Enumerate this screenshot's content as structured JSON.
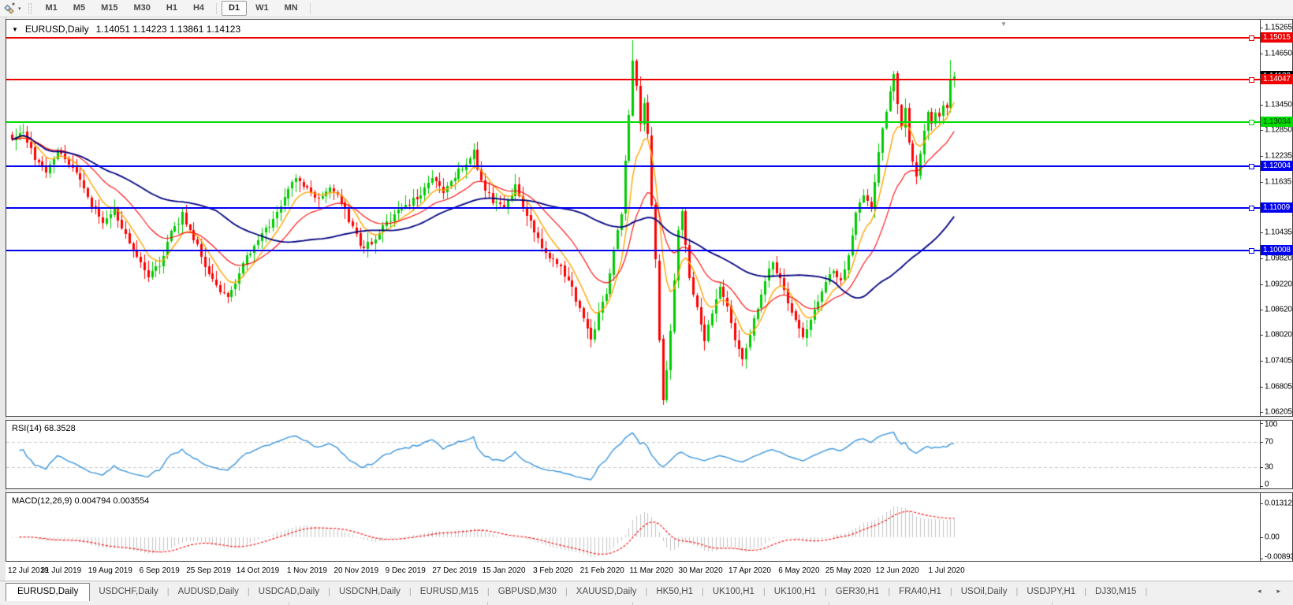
{
  "toolbar": {
    "dropdown_glyph": "▾",
    "timeframes": [
      {
        "label": "M1",
        "active": false
      },
      {
        "label": "M5",
        "active": false
      },
      {
        "label": "M15",
        "active": false
      },
      {
        "label": "M30",
        "active": false
      },
      {
        "label": "H1",
        "active": false
      },
      {
        "label": "H4",
        "active": false
      },
      {
        "label": "D1",
        "active": true
      },
      {
        "label": "W1",
        "active": false
      },
      {
        "label": "MN",
        "active": false
      }
    ]
  },
  "icons": {
    "charts_icon": "charts-icon",
    "title_dropdown": "▼",
    "shift_marker": "▼",
    "tab_scroll_left": "◂",
    "tab_scroll_right": "▸"
  },
  "chart": {
    "symbol": "EURUSD,Daily",
    "ohlc": "1.14051 1.14223 1.13861 1.14123",
    "axis_ticks": [
      {
        "price": 1.15265,
        "label": "1.15265"
      },
      {
        "price": 1.1465,
        "label": "1.14650"
      },
      {
        "price": 1.1345,
        "label": "1.13450"
      },
      {
        "price": 1.1285,
        "label": "1.12850"
      },
      {
        "price": 1.12235,
        "label": "1.12235"
      },
      {
        "price": 1.11635,
        "label": "1.11635"
      },
      {
        "price": 1.10435,
        "label": "1.10435"
      },
      {
        "price": 1.0982,
        "label": "1.09820"
      },
      {
        "price": 1.0922,
        "label": "1.09220"
      },
      {
        "price": 1.0862,
        "label": "1.08620"
      },
      {
        "price": 1.0802,
        "label": "1.08020"
      },
      {
        "price": 1.07405,
        "label": "1.07405"
      },
      {
        "price": 1.06805,
        "label": "1.06805"
      },
      {
        "price": 1.06205,
        "label": "1.06205"
      }
    ],
    "hlines": [
      {
        "price": 1.15015,
        "label": "1.15015",
        "color": "#EE0000",
        "text": "#FFFFFF"
      },
      {
        "price": 1.14047,
        "label": "1.14047",
        "color": "#EE0000",
        "text": "#FFFFFF"
      },
      {
        "price": 1.13034,
        "label": "1.13034",
        "color": "#00DC00",
        "text": "#003300"
      },
      {
        "price": 1.12004,
        "label": "1.12004",
        "color": "#0000EE",
        "text": "#FFFFFF"
      },
      {
        "price": 1.11009,
        "label": "1.11009",
        "color": "#0000EE",
        "text": "#FFFFFF"
      },
      {
        "price": 1.10008,
        "label": "1.10008",
        "color": "#0000EE",
        "text": "#FFFFFF"
      }
    ],
    "current_price": {
      "price": 1.14123,
      "label": "1.14123",
      "color": "#000000",
      "text": "#FFFFFF"
    },
    "colors": {
      "bull": "#00CC00",
      "bear": "#FF0000",
      "ma_fast": "#FFA500",
      "ma_mid": "#FF0000",
      "ma_slow": "#000080"
    }
  },
  "rsi": {
    "label": "RSI(14) 68.3528",
    "color": "#3C96DC",
    "level_color": "#C8C8C8",
    "ticks": [
      {
        "v": 100,
        "label": "100"
      },
      {
        "v": 70,
        "label": "70"
      },
      {
        "v": 30,
        "label": "30"
      },
      {
        "v": 0,
        "label": "0"
      }
    ],
    "levels": [
      70,
      30
    ]
  },
  "macd": {
    "label": "MACD(12,26,9) 0.004794 0.003554",
    "hist_color": "#C4C4C4",
    "signal_color": "#FF0000",
    "ticks": [
      {
        "v": 0.013121,
        "label": "0.013121"
      },
      {
        "v": 0,
        "label": "0.00"
      },
      {
        "v": -0.008933,
        "label": "-0.008933"
      }
    ]
  },
  "dates": [
    "12 Jul 2019",
    "31 Jul 2019",
    "19 Aug 2019",
    "6 Sep 2019",
    "25 Sep 2019",
    "14 Oct 2019",
    "1 Nov 2019",
    "20 Nov 2019",
    "9 Dec 2019",
    "27 Dec 2019",
    "15 Jan 2020",
    "3 Feb 2020",
    "21 Feb 2020",
    "11 Mar 2020",
    "30 Mar 2020",
    "17 Apr 2020",
    "6 May 2020",
    "25 May 2020",
    "12 Jun 2020",
    "1 Jul 2020"
  ],
  "tabs": {
    "items": [
      {
        "label": "EURUSD,Daily",
        "active": true
      },
      {
        "label": "USDCHF,Daily",
        "active": false
      },
      {
        "label": "AUDUSD,Daily",
        "active": false
      },
      {
        "label": "USDCAD,Daily",
        "active": false
      },
      {
        "label": "USDCNH,Daily",
        "active": false
      },
      {
        "label": "EURUSD,M15",
        "active": false
      },
      {
        "label": "GBPUSD,M30",
        "active": false
      },
      {
        "label": "XAUUSD,Daily",
        "active": false
      },
      {
        "label": "HK50,H1",
        "active": false
      },
      {
        "label": "UK100,H1",
        "active": false
      },
      {
        "label": "UK100,H1",
        "active": false
      },
      {
        "label": "GER30,H1",
        "active": false
      },
      {
        "label": "FRA40,H1",
        "active": false
      },
      {
        "label": "USOil,Daily",
        "active": false
      },
      {
        "label": "USDJPY,H1",
        "active": false
      },
      {
        "label": "DJ30,M15",
        "active": false
      }
    ]
  },
  "chart_data": {
    "type": "candlestick",
    "symbol": "EURUSD",
    "timeframe": "Daily",
    "visible_range": {
      "start": "12 Jul 2019",
      "end": "1 Jul 2020"
    },
    "last_ohlc": {
      "open": 1.14051,
      "high": 1.14223,
      "low": 1.13861,
      "close": 1.14123
    },
    "y_axis": {
      "min": 1.06205,
      "max": 1.15265
    },
    "horizontal_levels": [
      1.15015,
      1.14047,
      1.13034,
      1.12004,
      1.11009,
      1.10008
    ],
    "indicators": [
      {
        "name": "RSI",
        "period": 14,
        "value": 68.3528,
        "levels": [
          70,
          30
        ],
        "range": [
          0,
          100
        ]
      },
      {
        "name": "MACD",
        "params": [
          12,
          26,
          9
        ],
        "values": [
          0.004794,
          0.003554
        ],
        "range": [
          -0.008933,
          0.013121
        ]
      },
      {
        "name": "MA-fast",
        "color": "#FFA500"
      },
      {
        "name": "MA-mid",
        "color": "#FF0000"
      },
      {
        "name": "MA-slow",
        "color": "#000080"
      }
    ],
    "price_path_anchors": [
      [
        0,
        1.127
      ],
      [
        3,
        1.128
      ],
      [
        6,
        1.1215
      ],
      [
        9,
        1.1185
      ],
      [
        12,
        1.123
      ],
      [
        15,
        1.121
      ],
      [
        18,
        1.116
      ],
      [
        21,
        1.1105
      ],
      [
        24,
        1.1065
      ],
      [
        27,
        1.1095
      ],
      [
        30,
        1.104
      ],
      [
        33,
        1.099
      ],
      [
        36,
        1.094
      ],
      [
        39,
        1.0965
      ],
      [
        42,
        1.104
      ],
      [
        45,
        1.1085
      ],
      [
        48,
        1.103
      ],
      [
        51,
        1.097
      ],
      [
        54,
        1.092
      ],
      [
        57,
        1.0885
      ],
      [
        60,
        1.095
      ],
      [
        63,
        1.1
      ],
      [
        66,
        1.1035
      ],
      [
        69,
        1.1075
      ],
      [
        72,
        1.113
      ],
      [
        75,
        1.117
      ],
      [
        78,
        1.1145
      ],
      [
        81,
        1.112
      ],
      [
        84,
        1.1155
      ],
      [
        87,
        1.1115
      ],
      [
        90,
        1.105
      ],
      [
        93,
        1.1005
      ],
      [
        96,
        1.103
      ],
      [
        99,
        1.1065
      ],
      [
        102,
        1.109
      ],
      [
        105,
        1.111
      ],
      [
        108,
        1.1135
      ],
      [
        111,
        1.1165
      ],
      [
        114,
        1.114
      ],
      [
        117,
        1.1175
      ],
      [
        120,
        1.121
      ],
      [
        122,
        1.1235
      ],
      [
        124,
        1.116
      ],
      [
        127,
        1.1115
      ],
      [
        130,
        1.1105
      ],
      [
        133,
        1.115
      ],
      [
        136,
        1.109
      ],
      [
        139,
        1.103
      ],
      [
        142,
        1.0985
      ],
      [
        145,
        1.096
      ],
      [
        148,
        1.0915
      ],
      [
        151,
        1.0835
      ],
      [
        153,
        1.0785
      ],
      [
        155,
        1.085
      ],
      [
        157,
        1.0905
      ],
      [
        159,
        1.0995
      ],
      [
        161,
        1.1095
      ],
      [
        163,
        1.132
      ],
      [
        164,
        1.1445
      ],
      [
        165,
        1.1385
      ],
      [
        166,
        1.13
      ],
      [
        167,
        1.1355
      ],
      [
        168,
        1.127
      ],
      [
        169,
        1.111
      ],
      [
        170,
        1.098
      ],
      [
        171,
        1.079
      ],
      [
        172,
        1.065
      ],
      [
        173,
        1.0725
      ],
      [
        174,
        1.0805
      ],
      [
        175,
        1.0925
      ],
      [
        176,
        1.1045
      ],
      [
        177,
        1.1095
      ],
      [
        178,
        1.1015
      ],
      [
        179,
        1.0945
      ],
      [
        181,
        1.086
      ],
      [
        183,
        1.0795
      ],
      [
        185,
        1.0855
      ],
      [
        187,
        1.0915
      ],
      [
        189,
        1.0865
      ],
      [
        191,
        1.079
      ],
      [
        193,
        1.074
      ],
      [
        195,
        1.0805
      ],
      [
        197,
        1.087
      ],
      [
        199,
        1.093
      ],
      [
        201,
        1.0975
      ],
      [
        203,
        1.0935
      ],
      [
        205,
        1.0885
      ],
      [
        207,
        1.0835
      ],
      [
        209,
        1.079
      ],
      [
        211,
        1.0835
      ],
      [
        213,
        1.088
      ],
      [
        215,
        1.092
      ],
      [
        217,
        1.0955
      ],
      [
        219,
        1.0925
      ],
      [
        221,
        1.0985
      ],
      [
        223,
        1.1085
      ],
      [
        225,
        1.113
      ],
      [
        227,
        1.1105
      ],
      [
        229,
        1.1235
      ],
      [
        231,
        1.1335
      ],
      [
        233,
        1.142
      ],
      [
        234,
        1.135
      ],
      [
        235,
        1.129
      ],
      [
        236,
        1.133
      ],
      [
        237,
        1.125
      ],
      [
        238,
        1.1205
      ],
      [
        239,
        1.117
      ],
      [
        240,
        1.1235
      ],
      [
        241,
        1.1285
      ],
      [
        242,
        1.133
      ],
      [
        243,
        1.13
      ],
      [
        244,
        1.133
      ],
      [
        245,
        1.131
      ],
      [
        246,
        1.1345
      ],
      [
        247,
        1.133
      ],
      [
        248,
        1.1405
      ],
      [
        249,
        1.14123
      ]
    ]
  }
}
